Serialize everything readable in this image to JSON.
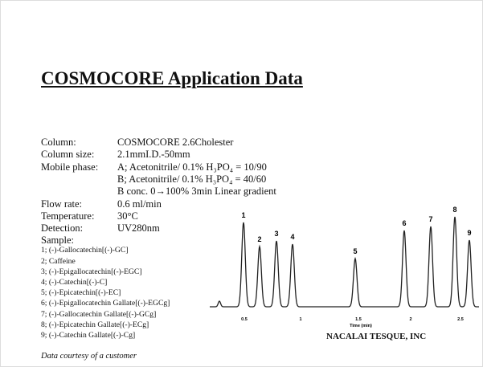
{
  "title": "COSMOCORE Application Data",
  "conditions": [
    {
      "label": "Column:",
      "lines": [
        "COSMOCORE 2.6Cholester"
      ]
    },
    {
      "label": "Column size:",
      "lines": [
        "2.1mmI.D.-50mm"
      ]
    },
    {
      "label": "Mobile phase:",
      "lines": [
        "A; Acetonitrile/ 0.1% H₃PO₄ = 10/90",
        "B; Acetonitrile/ 0.1% H₃PO₄ = 40/60",
        "B conc. 0→100% 3min Linear gradient"
      ]
    },
    {
      "label": "Flow rate:",
      "lines": [
        "0.6 ml/min"
      ]
    },
    {
      "label": "Temperature:",
      "lines": [
        "30°C"
      ]
    },
    {
      "label": "Detection:",
      "lines": [
        "UV280nm"
      ]
    }
  ],
  "sample": {
    "label": "Sample:",
    "items": [
      "1; (-)-Gallocatechin[(-)-GC]",
      "2; Caffeine",
      "3; (-)-Epigallocatechin[(-)-EGC]",
      "4; (-)-Catechin[(-)-C]",
      "5; (-)-Epicatechin[(-)-EC]",
      "6; (-)-Epigallocatechin Gallate[(-)-EGCg]",
      "7; (-)-Gallocatechin Gallate[(-)-GCg]",
      "8; (-)-Epicatechin Gallate[(-)-ECg]",
      "9; (-)-Catechin Gallate[(-)-Cg]"
    ]
  },
  "chromatogram": {
    "peak_labels": [
      "1",
      "2",
      "3",
      "4",
      "5",
      "6",
      "7",
      "8",
      "9"
    ],
    "time_ticks": [
      "0.5",
      "1",
      "1.5",
      "2",
      "2.5"
    ],
    "axis_label": "Time (min)"
  },
  "company": "NACALAI TESQUE, INC",
  "footnote": "Data courtesy of a customer"
}
